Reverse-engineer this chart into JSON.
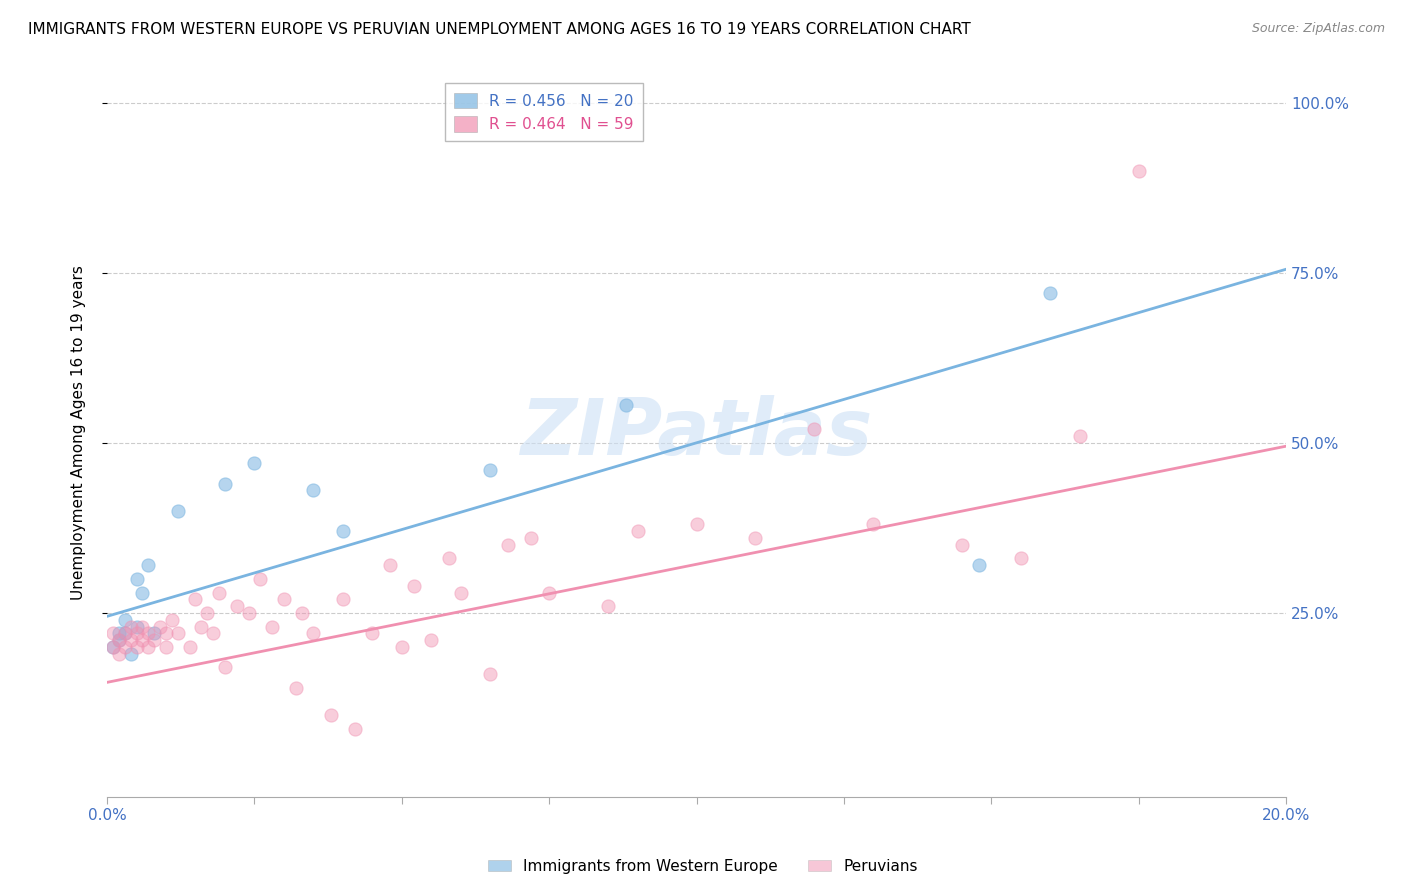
{
  "title": "IMMIGRANTS FROM WESTERN EUROPE VS PERUVIAN UNEMPLOYMENT AMONG AGES 16 TO 19 YEARS CORRELATION CHART",
  "source": "Source: ZipAtlas.com",
  "ylabel": "Unemployment Among Ages 16 to 19 years",
  "x_min": 0.0,
  "x_max": 0.2,
  "y_min": -0.02,
  "y_max": 1.05,
  "legend1_label": "R = 0.456   N = 20",
  "legend2_label": "R = 0.464   N = 59",
  "blue_color": "#7ab4e0",
  "pink_color": "#f090b0",
  "watermark": "ZIPatlas",
  "blue_scatter_x": [
    0.001,
    0.002,
    0.002,
    0.003,
    0.003,
    0.004,
    0.005,
    0.005,
    0.006,
    0.007,
    0.008,
    0.012,
    0.02,
    0.025,
    0.035,
    0.04,
    0.065,
    0.088,
    0.148,
    0.16
  ],
  "blue_scatter_y": [
    0.2,
    0.21,
    0.22,
    0.22,
    0.24,
    0.19,
    0.23,
    0.3,
    0.28,
    0.32,
    0.22,
    0.4,
    0.44,
    0.47,
    0.43,
    0.37,
    0.46,
    0.555,
    0.32,
    0.72
  ],
  "pink_scatter_x": [
    0.001,
    0.001,
    0.002,
    0.002,
    0.003,
    0.003,
    0.004,
    0.004,
    0.005,
    0.005,
    0.006,
    0.006,
    0.007,
    0.007,
    0.008,
    0.009,
    0.01,
    0.01,
    0.011,
    0.012,
    0.014,
    0.015,
    0.016,
    0.017,
    0.018,
    0.019,
    0.02,
    0.022,
    0.024,
    0.026,
    0.028,
    0.03,
    0.032,
    0.033,
    0.035,
    0.038,
    0.04,
    0.042,
    0.045,
    0.048,
    0.05,
    0.052,
    0.055,
    0.058,
    0.06,
    0.065,
    0.068,
    0.072,
    0.075,
    0.085,
    0.09,
    0.1,
    0.11,
    0.12,
    0.13,
    0.145,
    0.155,
    0.165,
    0.175
  ],
  "pink_scatter_y": [
    0.2,
    0.22,
    0.19,
    0.21,
    0.2,
    0.22,
    0.21,
    0.23,
    0.2,
    0.22,
    0.21,
    0.23,
    0.2,
    0.22,
    0.21,
    0.23,
    0.2,
    0.22,
    0.24,
    0.22,
    0.2,
    0.27,
    0.23,
    0.25,
    0.22,
    0.28,
    0.17,
    0.26,
    0.25,
    0.3,
    0.23,
    0.27,
    0.14,
    0.25,
    0.22,
    0.1,
    0.27,
    0.08,
    0.22,
    0.32,
    0.2,
    0.29,
    0.21,
    0.33,
    0.28,
    0.16,
    0.35,
    0.36,
    0.28,
    0.26,
    0.37,
    0.38,
    0.36,
    0.52,
    0.38,
    0.35,
    0.33,
    0.51,
    0.9
  ],
  "blue_line_x": [
    0.0,
    0.2
  ],
  "blue_line_y": [
    0.245,
    0.755
  ],
  "pink_line_x": [
    0.0,
    0.2
  ],
  "pink_line_y": [
    0.148,
    0.495
  ],
  "y_ticks": [
    0.25,
    0.5,
    0.75,
    1.0
  ],
  "y_tick_labels": [
    "25.0%",
    "50.0%",
    "75.0%",
    "100.0%"
  ],
  "x_ticks": [
    0.0,
    0.025,
    0.05,
    0.075,
    0.1,
    0.125,
    0.15,
    0.175,
    0.2
  ],
  "x_tick_labels": [
    "0.0%",
    "",
    "",
    "",
    "",
    "",
    "",
    "",
    "20.0%"
  ],
  "title_fontsize": 11,
  "axis_label_fontsize": 11,
  "tick_fontsize": 11,
  "legend_fontsize": 11,
  "source_fontsize": 9,
  "bottom_legend_label1": "Immigrants from Western Europe",
  "bottom_legend_label2": "Peruvians"
}
